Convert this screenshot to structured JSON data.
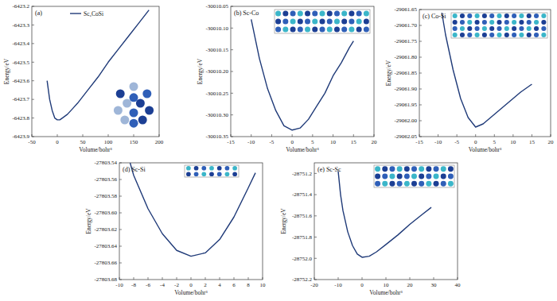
{
  "chart_data": [
    {
      "type": "line",
      "title": "(a)",
      "x_label": "Volume/bohr³",
      "y_label": "Energy/eV",
      "xlim": [
        -50,
        200
      ],
      "ylim": [
        -6423.9,
        -6423.2
      ],
      "xticks": [
        -50,
        0,
        50,
        100,
        150,
        200
      ],
      "yticks": [
        -6423.9,
        -6423.8,
        -6423.7,
        -6423.6,
        -6423.5,
        -6423.4,
        -6423.3,
        -6423.2
      ],
      "grid": false,
      "legend": "upper center",
      "x": [
        -20,
        -15,
        -10,
        -5,
        0,
        5,
        10,
        20,
        30,
        40,
        60,
        80,
        100,
        120,
        140,
        160,
        180
      ],
      "series": [
        {
          "name": "Sc₂CoSi",
          "color": "#1f3a78",
          "values": [
            -6423.6,
            -6423.7,
            -6423.76,
            -6423.8,
            -6423.81,
            -6423.81,
            -6423.8,
            -6423.78,
            -6423.75,
            -6423.72,
            -6423.65,
            -6423.58,
            -6423.5,
            -6423.43,
            -6423.36,
            -6423.29,
            -6423.22
          ]
        }
      ]
    },
    {
      "type": "line",
      "title": "(b) Sc-Co",
      "x_label": "Volume/bohr³",
      "y_label": "Energy/eV",
      "xlim": [
        -15,
        20
      ],
      "ylim": [
        -30010.35,
        -30010.05
      ],
      "xticks": [
        -15,
        -10,
        -5,
        0,
        5,
        10,
        15,
        20
      ],
      "yticks": [
        -30010.35,
        {
          "value": -30010.3,
          "label": "-30010.30"
        },
        -30010.25,
        {
          "value": -30010.2,
          "label": "-30010.20"
        },
        -30010.15,
        {
          "value": -30010.1,
          "label": "-30010.10"
        },
        -30010.05
      ],
      "grid": false,
      "x": [
        -10,
        -8,
        -6,
        -4,
        -2,
        0,
        2,
        4,
        6,
        8,
        10,
        12,
        14,
        15
      ],
      "series": [
        {
          "color": "#1f3a78",
          "values": [
            -30010.08,
            -30010.17,
            -30010.24,
            -30010.29,
            -30010.325,
            -30010.335,
            -30010.33,
            -30010.31,
            -30010.28,
            -30010.25,
            -30010.21,
            -30010.18,
            -30010.145,
            -30010.13
          ]
        }
      ]
    },
    {
      "type": "line",
      "title": "(c) Co-Si",
      "x_label": "Volume/bohr³",
      "y_label": "Energy/eV",
      "xlim": [
        -15,
        20
      ],
      "ylim": [
        -29062.05,
        -29061.65
      ],
      "xticks": [
        -15,
        -10,
        -5,
        0,
        5,
        10,
        15,
        20
      ],
      "yticks": [
        -29062.05,
        {
          "value": -29062,
          "label": "-29062.00"
        },
        -29061.95,
        {
          "value": -29061.9,
          "label": "-29061.90"
        },
        -29061.85,
        {
          "value": -29061.8,
          "label": "-29061.80"
        },
        -29061.75,
        {
          "value": -29061.7,
          "label": "-29061.70"
        },
        -29061.65
      ],
      "grid": false,
      "x": [
        -9,
        -8,
        -6,
        -4,
        -2,
        0,
        2,
        4,
        6,
        8,
        10,
        12,
        15
      ],
      "series": [
        {
          "color": "#1f3a78",
          "values": [
            -29061.66,
            -29061.73,
            -29061.84,
            -29061.93,
            -29061.99,
            -29062.02,
            -29062.01,
            -29061.99,
            -29061.97,
            -29061.95,
            -29061.93,
            -29061.91,
            -29061.885
          ]
        }
      ]
    },
    {
      "type": "line",
      "title": "(d) Sc-Si",
      "x_label": "Volume/bohr³",
      "y_label": "Energy/eV",
      "xlim": [
        -10,
        10
      ],
      "ylim": [
        -27803.68,
        -27803.54
      ],
      "xticks": [
        -10,
        -8,
        -6,
        -4,
        -2,
        0,
        2,
        4,
        6,
        8,
        10
      ],
      "yticks": [
        -27803.68,
        -27803.66,
        -27803.64,
        -27803.62,
        {
          "value": -27803.6,
          "label": "-27803.60"
        },
        -27803.58,
        -27803.56,
        -27803.54
      ],
      "grid": false,
      "x": [
        -8.5,
        -8,
        -6,
        -4,
        -2,
        0,
        2,
        4,
        6,
        8,
        9
      ],
      "series": [
        {
          "color": "#1f3a78",
          "values": [
            -27803.54,
            -27803.555,
            -27803.595,
            -27803.625,
            -27803.645,
            -27803.652,
            -27803.648,
            -27803.632,
            -27803.605,
            -27803.57,
            -27803.552
          ]
        }
      ]
    },
    {
      "type": "line",
      "title": "(e) Sc-Sc",
      "x_label": "Volume/bohr³",
      "y_label": "Energy/eV",
      "xlim": [
        -20,
        40
      ],
      "ylim": [
        -28752.2,
        -28751.1
      ],
      "xticks": [
        -20,
        -10,
        0,
        10,
        20,
        30,
        40
      ],
      "yticks": [
        -28752.2,
        {
          "value": -28752,
          "label": "-28752.0"
        },
        -28751.8,
        -28751.6,
        -28751.4,
        -28751.2
      ],
      "grid": false,
      "x": [
        -10,
        -9,
        -8,
        -6,
        -4,
        -2,
        0,
        3,
        6,
        10,
        15,
        20,
        25,
        29
      ],
      "series": [
        {
          "color": "#1f3a78",
          "values": [
            -28751.18,
            -28751.4,
            -28751.55,
            -28751.75,
            -28751.88,
            -28751.96,
            -28751.99,
            -28751.98,
            -28751.94,
            -28751.87,
            -28751.78,
            -28751.68,
            -28751.59,
            -28751.52
          ]
        }
      ]
    }
  ]
}
